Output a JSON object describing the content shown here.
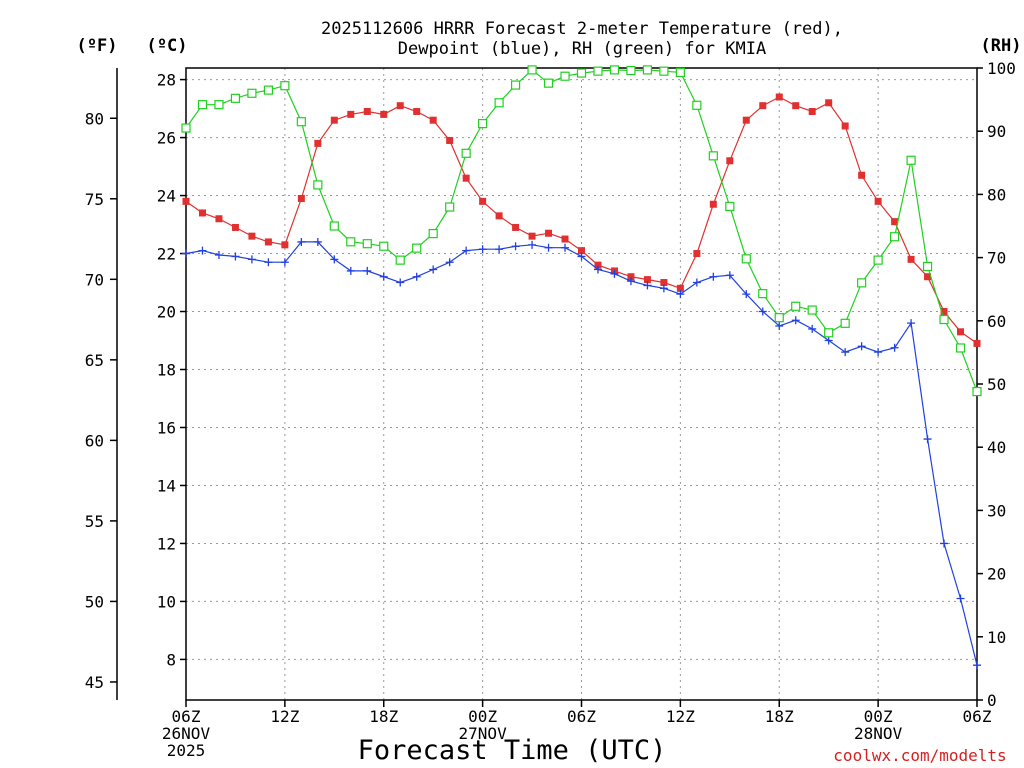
{
  "chart_data": {
    "type": "line",
    "title_line1": "2025112606 HRRR Forecast 2-meter Temperature (red),",
    "title_line2": "Dewpoint (blue), RH (green) for KMIA",
    "xlabel": "Forecast Time (UTC)",
    "credit": "coolwx.com/modelts",
    "units": {
      "fahrenheit": "(ºF)",
      "celsius": "(ºC)",
      "rh": "(RH)"
    },
    "x_range_hours": [
      0,
      48
    ],
    "celsius_range": [
      6.6,
      28.4
    ],
    "rh_range": [
      0,
      100
    ],
    "x_ticks": [
      {
        "hour": 0,
        "lines": [
          "06Z",
          "26NOV",
          "2025"
        ]
      },
      {
        "hour": 6,
        "lines": [
          "12Z"
        ]
      },
      {
        "hour": 12,
        "lines": [
          "18Z"
        ]
      },
      {
        "hour": 18,
        "lines": [
          "00Z",
          "27NOV"
        ]
      },
      {
        "hour": 24,
        "lines": [
          "06Z"
        ]
      },
      {
        "hour": 30,
        "lines": [
          "12Z"
        ]
      },
      {
        "hour": 36,
        "lines": [
          "18Z"
        ]
      },
      {
        "hour": 42,
        "lines": [
          "00Z",
          "28NOV"
        ]
      },
      {
        "hour": 48,
        "lines": [
          "06Z"
        ]
      }
    ],
    "celsius_ticks": [
      "8",
      "10",
      "12",
      "14",
      "16",
      "18",
      "20",
      "22",
      "24",
      "26",
      "28"
    ],
    "fahrenheit_ticks": [
      "45",
      "50",
      "55",
      "60",
      "65",
      "70",
      "75",
      "80"
    ],
    "rh_ticks": [
      "0",
      "10",
      "20",
      "30",
      "40",
      "50",
      "60",
      "70",
      "80",
      "90",
      "100"
    ],
    "series": [
      {
        "name": "Temperature",
        "color": "#e03030",
        "marker": "filled-square",
        "values": [
          23.8,
          23.4,
          23.2,
          22.9,
          22.6,
          22.4,
          22.3,
          23.9,
          25.8,
          26.6,
          26.8,
          26.9,
          26.8,
          27.1,
          26.9,
          26.6,
          25.9,
          24.6,
          23.8,
          23.3,
          22.9,
          22.6,
          22.7,
          22.5,
          22.1,
          21.6,
          21.4,
          21.2,
          21.1,
          21.0,
          20.8,
          22.0,
          23.7,
          25.2,
          26.6,
          27.1,
          27.4,
          27.1,
          26.9,
          27.2,
          26.4,
          24.7,
          23.8,
          23.1,
          21.8,
          21.2,
          20.0,
          19.3,
          18.9
        ]
      },
      {
        "name": "Dewpoint",
        "color": "#2040e0",
        "marker": "plus",
        "values": [
          22.0,
          22.1,
          21.95,
          21.9,
          21.8,
          21.7,
          21.7,
          22.4,
          22.4,
          21.8,
          21.4,
          21.4,
          21.2,
          21.0,
          21.2,
          21.45,
          21.7,
          22.1,
          22.15,
          22.15,
          22.25,
          22.3,
          22.2,
          22.2,
          21.9,
          21.45,
          21.3,
          21.05,
          20.9,
          20.8,
          20.6,
          21.0,
          21.2,
          21.25,
          20.6,
          20.0,
          19.5,
          19.7,
          19.4,
          19.0,
          18.6,
          18.8,
          18.6,
          18.75,
          19.6,
          15.6,
          12.0,
          10.1,
          7.8
        ]
      },
      {
        "name": "RH",
        "color": "#20d020",
        "marker": "open-square",
        "values": [
          90.5,
          94.2,
          94.2,
          95.2,
          96.0,
          96.5,
          97.2,
          91.5,
          81.5,
          75.0,
          72.5,
          72.2,
          71.8,
          69.6,
          71.5,
          73.8,
          78.0,
          86.5,
          91.2,
          94.5,
          97.3,
          99.7,
          97.6,
          98.7,
          99.2,
          99.5,
          99.7,
          99.6,
          99.7,
          99.5,
          99.3,
          94.1,
          86.1,
          78.1,
          69.8,
          64.3,
          60.5,
          62.3,
          61.7,
          58.1,
          59.6,
          66.0,
          69.6,
          73.3,
          85.4,
          68.6,
          60.2,
          55.7,
          48.8
        ]
      }
    ]
  }
}
